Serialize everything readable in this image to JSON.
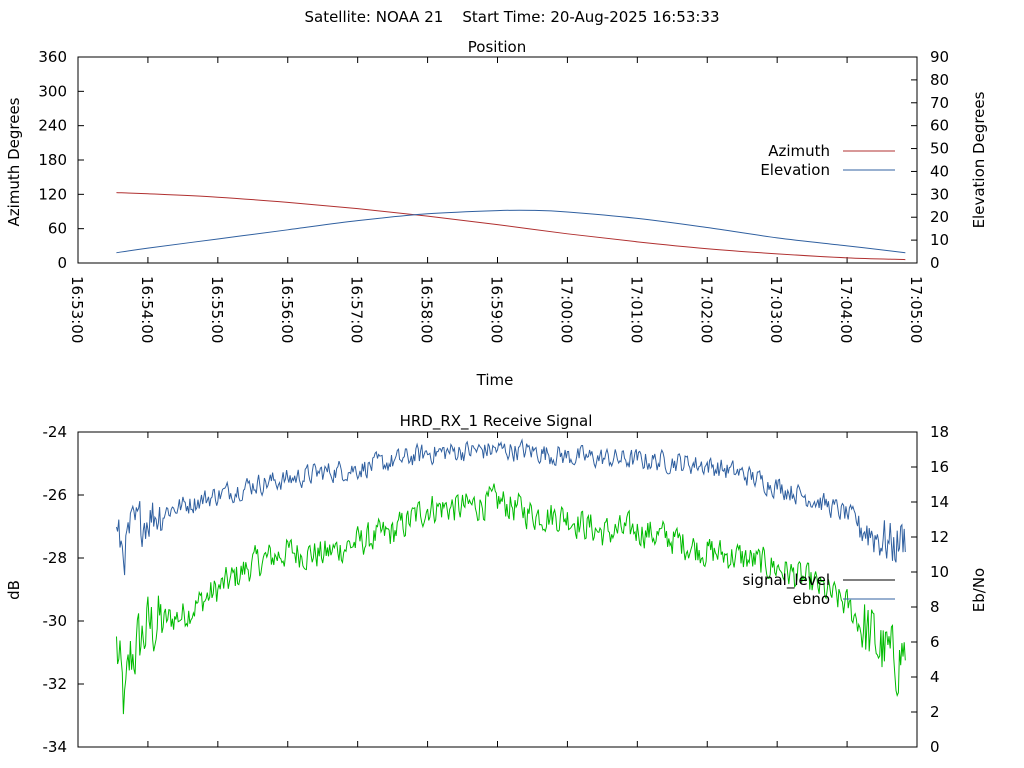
{
  "header": {
    "satellite_text": "Satellite: NOAA 21",
    "start_time_text": "Start Time: 20-Aug-2025 16:53:33"
  },
  "colors": {
    "azimuth": "#b03030",
    "elevation": "#3060a0",
    "signal_level": "#00bb00",
    "ebno": "#3060a0",
    "legend_signal_level": "#000000",
    "legend_ebno": "#3060a0"
  },
  "chart_data": [
    {
      "type": "line",
      "title": "Position",
      "xlabel": "Time",
      "ylabel_left": "Azimuth Degrees",
      "ylabel_right": "Elevation Degrees",
      "x_ticks": [
        "16:53:00",
        "16:54:00",
        "16:55:00",
        "16:56:00",
        "16:57:00",
        "16:58:00",
        "16:59:00",
        "17:00:00",
        "17:01:00",
        "17:02:00",
        "17:03:00",
        "17:04:00",
        "17:05:00"
      ],
      "y_left_ticks": [
        0,
        60,
        120,
        180,
        240,
        300,
        360
      ],
      "y_right_ticks": [
        0,
        10,
        20,
        30,
        40,
        50,
        60,
        70,
        80,
        90
      ],
      "xlim": [
        "16:53:00",
        "17:05:00"
      ],
      "ylim_left": [
        0,
        360
      ],
      "ylim_right": [
        0,
        90
      ],
      "legend_position": "right",
      "grid": false,
      "series": [
        {
          "name": "Azimuth",
          "axis": "left",
          "x": [
            "16:53:33",
            "16:54:00",
            "16:55:00",
            "16:56:00",
            "16:57:00",
            "16:58:00",
            "16:59:00",
            "17:00:00",
            "17:01:00",
            "17:02:00",
            "17:03:00",
            "17:04:00",
            "17:04:50"
          ],
          "values": [
            123,
            121,
            115,
            106,
            95,
            82,
            67,
            51,
            37,
            25,
            16,
            9,
            6
          ]
        },
        {
          "name": "Elevation",
          "axis": "right",
          "x": [
            "16:53:33",
            "16:54:00",
            "16:55:00",
            "16:56:00",
            "16:57:00",
            "16:58:00",
            "16:59:00",
            "16:59:30",
            "17:00:00",
            "17:01:00",
            "17:02:00",
            "17:03:00",
            "17:04:00",
            "17:04:50"
          ],
          "values": [
            4.5,
            6.5,
            10.5,
            14.5,
            18.5,
            21.5,
            22.9,
            23.0,
            22.3,
            19.5,
            15.5,
            11.0,
            7.5,
            4.5
          ]
        }
      ]
    },
    {
      "type": "line",
      "title": "HRD_RX_1 Receive Signal",
      "ylabel_left": "dB",
      "ylabel_right": "Eb/No",
      "y_left_ticks": [
        -34,
        -32,
        -30,
        -28,
        -26,
        -24
      ],
      "y_right_ticks": [
        0,
        2,
        4,
        6,
        8,
        10,
        12,
        14,
        16,
        18
      ],
      "xlim": [
        "16:53:00",
        "17:05:00"
      ],
      "ylim_left": [
        -34,
        -24
      ],
      "ylim_right": [
        0,
        18
      ],
      "legend_position": "right",
      "grid": false,
      "series": [
        {
          "name": "signal_level",
          "axis": "left",
          "x": [
            "16:53:33",
            "16:53:40",
            "16:53:45",
            "16:54:00",
            "16:54:30",
            "16:55:00",
            "16:55:30",
            "16:56:00",
            "16:56:30",
            "16:57:00",
            "16:57:30",
            "16:58:00",
            "16:58:30",
            "16:59:00",
            "16:59:30",
            "17:00:00",
            "17:00:30",
            "17:01:00",
            "17:01:30",
            "17:02:00",
            "17:02:30",
            "17:03:00",
            "17:03:30",
            "17:04:00",
            "17:04:20",
            "17:04:40",
            "17:04:50"
          ],
          "values": [
            -30.8,
            -32.8,
            -31.2,
            -30.2,
            -29.8,
            -29.0,
            -28.2,
            -27.8,
            -27.9,
            -27.5,
            -27.2,
            -26.4,
            -26.4,
            -26.2,
            -26.6,
            -26.7,
            -27.2,
            -27.1,
            -27.4,
            -27.8,
            -28.0,
            -28.3,
            -28.8,
            -29.5,
            -30.5,
            -31.3,
            -30.9
          ]
        },
        {
          "name": "ebno",
          "axis": "right",
          "x": [
            "16:53:33",
            "16:53:40",
            "16:53:45",
            "16:54:00",
            "16:54:30",
            "16:55:00",
            "16:55:30",
            "16:56:00",
            "16:56:30",
            "16:57:00",
            "16:57:30",
            "16:58:00",
            "16:58:30",
            "16:59:00",
            "16:59:30",
            "17:00:00",
            "17:00:30",
            "17:01:00",
            "17:01:30",
            "17:02:00",
            "17:02:30",
            "17:03:00",
            "17:03:30",
            "17:04:00",
            "17:04:20",
            "17:04:40",
            "17:04:50"
          ],
          "values": [
            12.0,
            11.2,
            12.3,
            13.2,
            13.8,
            14.4,
            15.0,
            15.3,
            15.7,
            15.9,
            16.3,
            16.8,
            16.9,
            17.0,
            16.9,
            16.6,
            16.5,
            16.4,
            16.3,
            16.1,
            15.6,
            14.9,
            14.2,
            13.3,
            12.3,
            11.5,
            12.0
          ]
        }
      ]
    }
  ]
}
